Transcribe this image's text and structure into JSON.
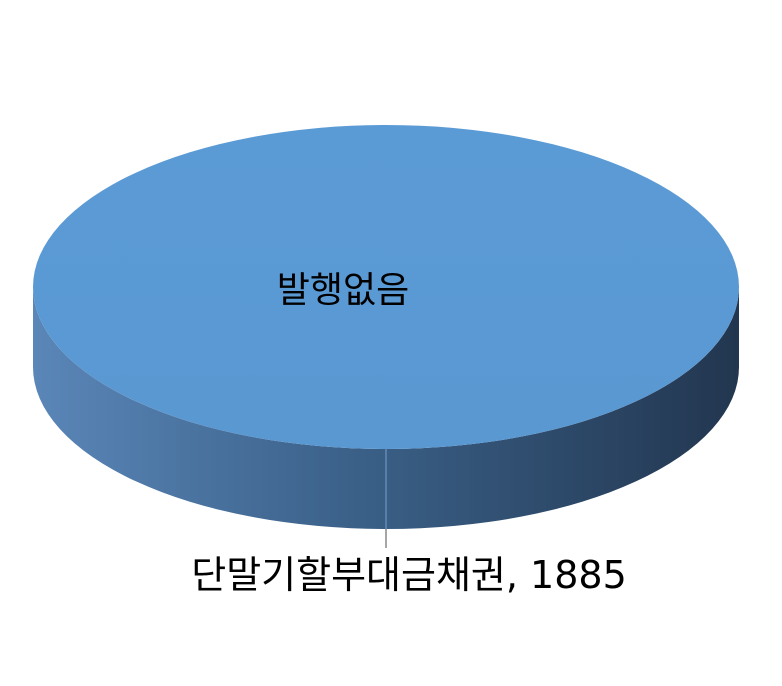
{
  "chart_data": {
    "type": "pie",
    "style": "3d",
    "slices": [
      {
        "name": "발행없음",
        "value": null,
        "label": "발행없음",
        "color": "#5b9bd5"
      },
      {
        "name": "단말기할부대금채권",
        "value": 1885,
        "label": "단말기할부대금채권, 1885",
        "color": "#5b9bd5"
      }
    ],
    "colors": {
      "top": "#5b9bd5",
      "side_light": "#5a86b8",
      "side_dark": "#22364f",
      "leader_line": "#a6a6a6"
    }
  }
}
